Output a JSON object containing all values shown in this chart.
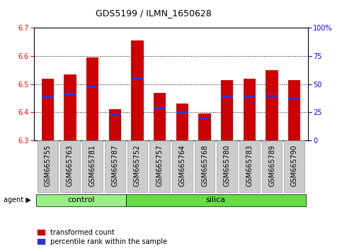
{
  "title": "GDS5199 / ILMN_1650628",
  "categories": [
    "GSM665755",
    "GSM665763",
    "GSM665781",
    "GSM665787",
    "GSM665752",
    "GSM665757",
    "GSM665764",
    "GSM665768",
    "GSM665780",
    "GSM665783",
    "GSM665789",
    "GSM665790"
  ],
  "bar_tops": [
    6.52,
    6.535,
    6.595,
    6.41,
    6.655,
    6.47,
    6.43,
    6.395,
    6.515,
    6.52,
    6.55,
    6.515
  ],
  "bar_base": 6.3,
  "percentile_values": [
    6.455,
    6.465,
    6.49,
    6.393,
    6.52,
    6.415,
    6.4,
    6.378,
    6.455,
    6.455,
    6.458,
    6.448
  ],
  "control_count": 4,
  "silica_count": 8,
  "ylim": [
    6.3,
    6.7
  ],
  "yticks": [
    6.3,
    6.4,
    6.5,
    6.6,
    6.7
  ],
  "right_yticks_vals": [
    0,
    25,
    50,
    75,
    100
  ],
  "right_yticks_labels": [
    "0",
    "25",
    "50",
    "75",
    "100%"
  ],
  "bar_color": "#cc0000",
  "percentile_color": "#3333cc",
  "control_bg": "#99ee88",
  "silica_bg": "#66dd44",
  "tick_label_bg": "#cccccc",
  "grid_color": "#000000",
  "bar_width": 0.55,
  "legend_items": [
    "transformed count",
    "percentile rank within the sample"
  ],
  "title_fontsize": 9,
  "tick_fontsize": 7,
  "label_fontsize": 7
}
